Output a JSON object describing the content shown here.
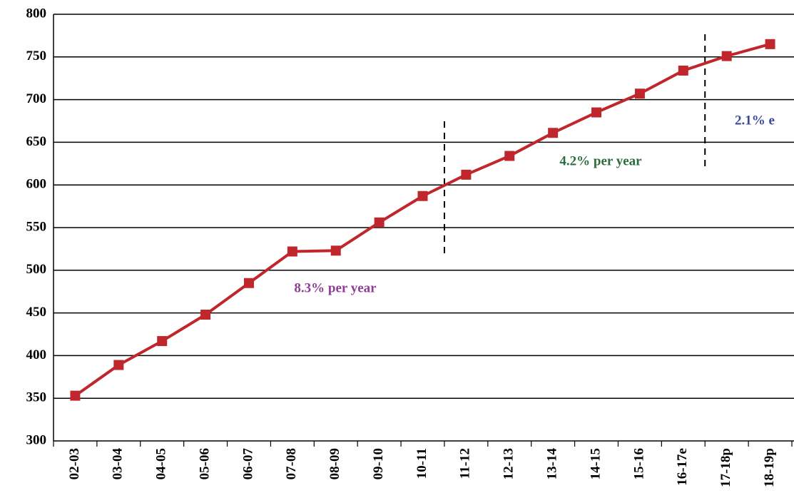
{
  "chart_data": {
    "type": "line",
    "categories": [
      "02-03",
      "03-04",
      "04-05",
      "05-06",
      "06-07",
      "07-08",
      "08-09",
      "09-10",
      "10-11",
      "11-12",
      "12-13",
      "13-14",
      "14-15",
      "15-16",
      "16-17e",
      "17-18p",
      "18-19p"
    ],
    "series": [
      {
        "color": "#c0272d",
        "values": [
          353,
          389,
          417,
          448,
          485,
          522,
          523,
          556,
          587,
          612,
          634,
          661,
          685,
          707,
          734,
          751,
          765
        ]
      }
    ],
    "ylim": [
      300,
      800
    ],
    "yticks": [
      300,
      350,
      400,
      450,
      500,
      550,
      600,
      650,
      700,
      750,
      800
    ],
    "grid": true,
    "annotations": [
      {
        "text": "8.3% per year",
        "color": "#8e3c96"
      },
      {
        "text": "4.2% per year",
        "color": "#2a6e3c"
      },
      {
        "text": "2.1% e",
        "color": "#3a4a9a"
      }
    ]
  }
}
